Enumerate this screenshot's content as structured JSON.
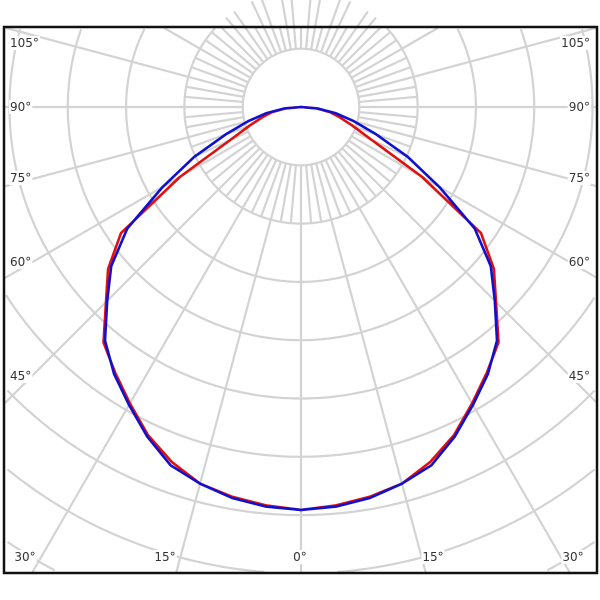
{
  "chart_data": {
    "type": "polar",
    "title": "",
    "angle_labels": {
      "left": [
        "105°",
        "90°",
        "75°",
        "60°",
        "45°"
      ],
      "right": [
        "105°",
        "90°",
        "75°",
        "60°",
        "45°"
      ],
      "bottom": [
        "30°",
        "15°",
        "0°",
        "15°",
        "30°"
      ]
    },
    "angle_zero_direction": "down",
    "angular_grid_step_deg": 15,
    "inner_angular_grid_step_deg": 5,
    "radial_grid_step": 1,
    "grid": true,
    "grid_color": "#d3d3d3",
    "symmetric": true,
    "angles_deg": [
      0,
      5,
      10,
      15,
      20,
      25,
      30,
      35,
      40,
      45,
      50,
      55,
      60,
      65,
      70,
      75,
      80,
      85,
      90
    ],
    "series": [
      {
        "color": "#e01010",
        "values": [
          6.91,
          6.86,
          6.79,
          6.69,
          6.48,
          6.21,
          5.87,
          5.56,
          5.27,
          4.73,
          4.32,
          3.77,
          2.4,
          1.34,
          0.94,
          0.69,
          0.51,
          0.26,
          0
        ]
      },
      {
        "color": "#1010d0",
        "values": [
          6.91,
          6.88,
          6.81,
          6.69,
          6.54,
          6.24,
          5.9,
          5.59,
          5.23,
          4.7,
          4.25,
          3.64,
          2.74,
          2.02,
          1.37,
          0.94,
          0.6,
          0.29,
          0
        ]
      }
    ]
  }
}
